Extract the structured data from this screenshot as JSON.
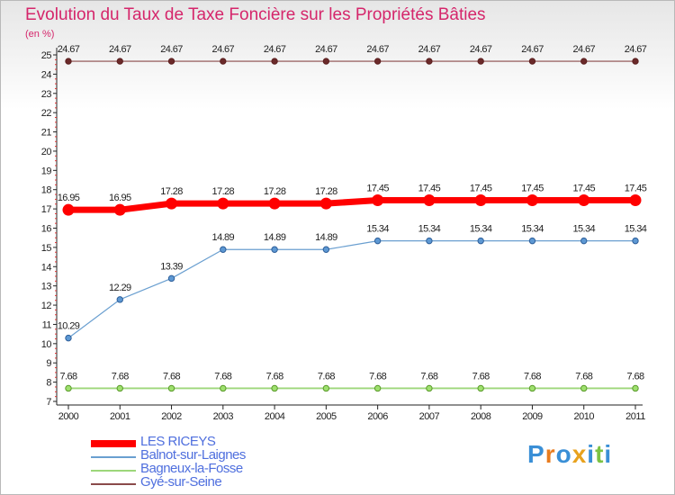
{
  "header": {
    "title": "Evolution du Taux de Taxe Foncière sur les Propriétés Bâties",
    "subtitle": "(en %)"
  },
  "chart_data": {
    "type": "line",
    "title": "Evolution du Taux de Taxe Foncière sur les Propriétés Bâties",
    "ylabel": "(en %)",
    "x": [
      "2000",
      "2001",
      "2002",
      "2003",
      "2004",
      "2005",
      "2006",
      "2007",
      "2008",
      "2009",
      "2010",
      "2011"
    ],
    "ylim": [
      7,
      25
    ],
    "yticks": [
      7,
      8,
      9,
      10,
      11,
      12,
      13,
      14,
      15,
      16,
      17,
      18,
      19,
      20,
      21,
      22,
      23,
      24,
      25
    ],
    "grid": false,
    "legend_position": "bottom-left",
    "series": [
      {
        "name": "LES RICEYS",
        "color": "#ff0000",
        "values": [
          16.95,
          16.95,
          17.28,
          17.28,
          17.28,
          17.28,
          17.45,
          17.45,
          17.45,
          17.45,
          17.45,
          17.45
        ],
        "labels": [
          "16.95",
          "16.95",
          "17.28",
          "17.28",
          "17.28",
          "17.28",
          "17.45",
          "17.45",
          "17.45",
          "17.45",
          "17.45",
          "17.45"
        ]
      },
      {
        "name": "Balnot-sur-Laignes",
        "color": "#6a9fd0",
        "values": [
          10.29,
          12.29,
          13.39,
          14.89,
          14.89,
          14.89,
          15.34,
          15.34,
          15.34,
          15.34,
          15.34,
          15.34
        ],
        "labels": [
          "10.29",
          "12.29",
          "13.39",
          "14.89",
          "14.89",
          "14.89",
          "15.34",
          "15.34",
          "15.34",
          "15.34",
          "15.34",
          "15.34"
        ]
      },
      {
        "name": "Bagneux-la-Fosse",
        "color": "#9dd77a",
        "values": [
          7.68,
          7.68,
          7.68,
          7.68,
          7.68,
          7.68,
          7.68,
          7.68,
          7.68,
          7.68,
          7.68,
          7.68
        ],
        "labels": [
          "7.68",
          "7.68",
          "7.68",
          "7.68",
          "7.68",
          "7.68",
          "7.68",
          "7.68",
          "7.68",
          "7.68",
          "7.68",
          "7.68"
        ]
      },
      {
        "name": "Gyé-sur-Seine",
        "color": "#8a4a4a",
        "values": [
          24.67,
          24.67,
          24.67,
          24.67,
          24.67,
          24.67,
          24.67,
          24.67,
          24.67,
          24.67,
          24.67,
          24.67
        ],
        "labels": [
          "24.67",
          "24.67",
          "24.67",
          "24.67",
          "24.67",
          "24.67",
          "24.67",
          "24.67",
          "24.67",
          "24.67",
          "24.67",
          "24.67"
        ]
      }
    ]
  },
  "legend": {
    "items": [
      {
        "label": "LES RICEYS",
        "color": "#ff0000"
      },
      {
        "label": "Balnot-sur-Laignes",
        "color": "#6a9fd0"
      },
      {
        "label": "Bagneux-la-Fosse",
        "color": "#9dd77a"
      },
      {
        "label": "Gyé-sur-Seine",
        "color": "#8a4a4a"
      }
    ]
  },
  "logo": {
    "text": "Proxiti",
    "letters": [
      {
        "ch": "P",
        "color": "#3a8fd6"
      },
      {
        "ch": "r",
        "color": "#e87c1e"
      },
      {
        "ch": "o",
        "color": "#3a8fd6"
      },
      {
        "ch": "x",
        "color": "#e8a21e"
      },
      {
        "ch": "i",
        "color": "#3a8fd6"
      },
      {
        "ch": "t",
        "color": "#7cc243"
      },
      {
        "ch": "i",
        "color": "#3a8fd6"
      }
    ]
  }
}
